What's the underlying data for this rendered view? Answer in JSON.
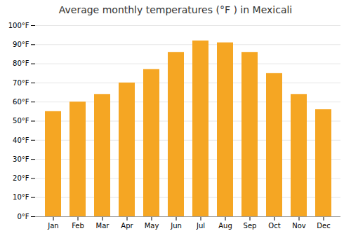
{
  "chart_data": {
    "type": "bar",
    "title": "Average monthly temperatures (°F ) in Mexicali",
    "categories": [
      "Jan",
      "Feb",
      "Mar",
      "Apr",
      "May",
      "Jun",
      "Jul",
      "Aug",
      "Sep",
      "Oct",
      "Nov",
      "Dec"
    ],
    "values": [
      55,
      60,
      64,
      70,
      77,
      86,
      92,
      91,
      86,
      75,
      64,
      56
    ],
    "color": "#F5A623",
    "ylim": [
      0,
      100
    ],
    "yticks": [
      {
        "value": 0,
        "label": "0°F"
      },
      {
        "value": 10,
        "label": "10°F"
      },
      {
        "value": 20,
        "label": "20°F"
      },
      {
        "value": 30,
        "label": "30°F"
      },
      {
        "value": 40,
        "label": "40°F"
      },
      {
        "value": 50,
        "label": "50°F"
      },
      {
        "value": 60,
        "label": "60°F"
      },
      {
        "value": 70,
        "label": "70°F"
      },
      {
        "value": 80,
        "label": "80°F"
      },
      {
        "value": 90,
        "label": "90°F"
      },
      {
        "value": 100,
        "label": "100°F"
      }
    ],
    "grid": true
  }
}
